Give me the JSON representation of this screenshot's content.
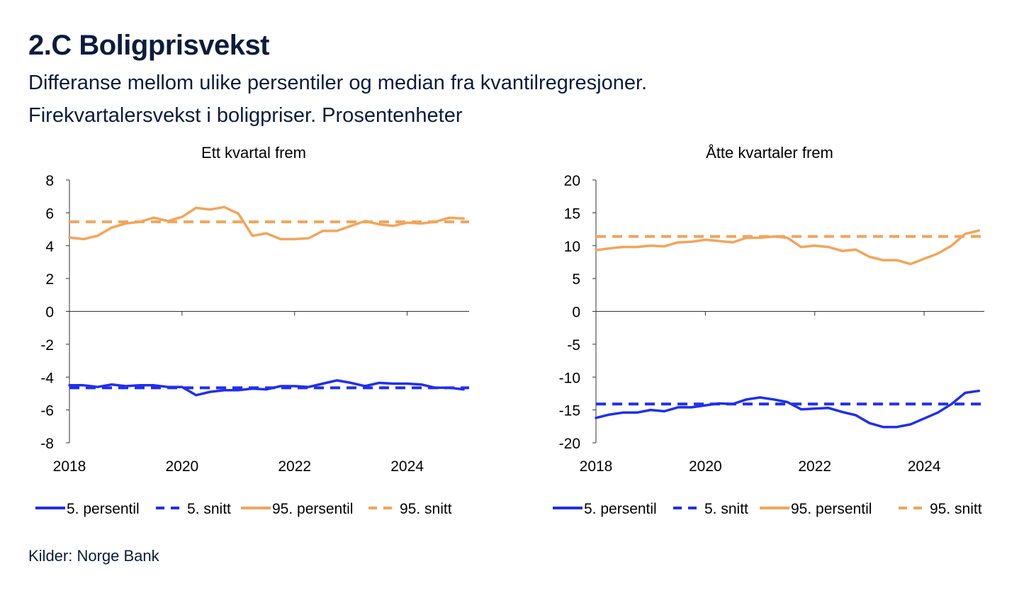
{
  "title": "2.C Boligprisvekst",
  "subtitle_line1": "Differanse mellom ulike persentiler og median fra kvantilregresjoner.",
  "subtitle_line2": "Firekvartalersvekst i boligpriser. Prosentenheter",
  "source": "Kilder: Norge Bank",
  "colors": {
    "blue": "#1f2ff0",
    "orange": "#f2a55a"
  },
  "chart_data": [
    {
      "type": "line",
      "title": "Ett kvartal frem",
      "xlabel": "",
      "ylabel": "",
      "xlim": [
        2018,
        2025.1
      ],
      "ylim": [
        -8,
        8
      ],
      "yticks": [
        "8",
        "6",
        "4",
        "2",
        "0",
        "-2",
        "-4",
        "-6",
        "-8"
      ],
      "ytick_values": [
        8,
        6,
        4,
        2,
        0,
        -2,
        -4,
        -6,
        -8
      ],
      "xticks": [
        "2018",
        "2020",
        "2022",
        "2024"
      ],
      "xtick_values": [
        2018,
        2020,
        2022,
        2024
      ],
      "legend": [
        "5. persentil",
        "5. snitt",
        "95. persentil",
        "95. snitt"
      ],
      "x": [
        2018.0,
        2018.25,
        2018.5,
        2018.75,
        2019.0,
        2019.25,
        2019.5,
        2019.75,
        2020.0,
        2020.25,
        2020.5,
        2020.75,
        2021.0,
        2021.25,
        2021.5,
        2021.75,
        2022.0,
        2022.25,
        2022.5,
        2022.75,
        2023.0,
        2023.25,
        2023.5,
        2023.75,
        2024.0,
        2024.25,
        2024.5,
        2024.75,
        2025.0
      ],
      "series": [
        {
          "name": "5. persentil",
          "style": "solid",
          "color": "#1f2ff0",
          "values": [
            -4.5,
            -4.5,
            -4.6,
            -4.45,
            -4.55,
            -4.5,
            -4.5,
            -4.6,
            -4.6,
            -5.1,
            -4.9,
            -4.8,
            -4.8,
            -4.7,
            -4.75,
            -4.55,
            -4.55,
            -4.6,
            -4.4,
            -4.2,
            -4.35,
            -4.55,
            -4.35,
            -4.4,
            -4.4,
            -4.45,
            -4.65,
            -4.65,
            -4.75
          ]
        },
        {
          "name": "5. snitt",
          "style": "dashed",
          "color": "#1f2ff0",
          "value": -4.65
        },
        {
          "name": "95. persentil",
          "style": "solid",
          "color": "#f2a55a",
          "values": [
            4.5,
            4.4,
            4.6,
            5.1,
            5.35,
            5.45,
            5.7,
            5.5,
            5.75,
            6.3,
            6.2,
            6.35,
            5.95,
            4.6,
            4.75,
            4.4,
            4.4,
            4.45,
            4.9,
            4.9,
            5.2,
            5.5,
            5.3,
            5.2,
            5.4,
            5.35,
            5.45,
            5.7,
            5.65
          ]
        },
        {
          "name": "95. snitt",
          "style": "dashed",
          "color": "#f2a55a",
          "value": 5.45
        }
      ]
    },
    {
      "type": "line",
      "title": "Åtte kvartaler frem",
      "xlabel": "",
      "ylabel": "",
      "xlim": [
        2018,
        2025.1
      ],
      "ylim": [
        -20,
        20
      ],
      "yticks": [
        "20",
        "15",
        "10",
        "5",
        "0",
        "-5",
        "-10",
        "-15",
        "-20"
      ],
      "ytick_values": [
        20,
        15,
        10,
        5,
        0,
        -5,
        -10,
        -15,
        -20
      ],
      "xticks": [
        "2018",
        "2020",
        "2022",
        "2024"
      ],
      "xtick_values": [
        2018,
        2020,
        2022,
        2024
      ],
      "legend": [
        "5. persentil",
        "5. snitt",
        "95. persentil",
        "95. snitt"
      ],
      "x": [
        2018.0,
        2018.25,
        2018.5,
        2018.75,
        2019.0,
        2019.25,
        2019.5,
        2019.75,
        2020.0,
        2020.25,
        2020.5,
        2020.75,
        2021.0,
        2021.25,
        2021.5,
        2021.75,
        2022.0,
        2022.25,
        2022.5,
        2022.75,
        2023.0,
        2023.25,
        2023.5,
        2023.75,
        2024.0,
        2024.25,
        2024.5,
        2024.75,
        2025.0
      ],
      "series": [
        {
          "name": "5. persentil",
          "style": "solid",
          "color": "#1f2ff0",
          "values": [
            -16.2,
            -15.7,
            -15.4,
            -15.4,
            -15.0,
            -15.2,
            -14.6,
            -14.6,
            -14.3,
            -14.0,
            -14.1,
            -13.4,
            -13.1,
            -13.4,
            -13.8,
            -14.9,
            -14.8,
            -14.7,
            -15.3,
            -15.8,
            -17.0,
            -17.6,
            -17.6,
            -17.2,
            -16.3,
            -15.4,
            -14.1,
            -12.4,
            -12.1
          ]
        },
        {
          "name": "5. snitt",
          "style": "dashed",
          "color": "#1f2ff0",
          "value": -14.1
        },
        {
          "name": "95. persentil",
          "style": "solid",
          "color": "#f2a55a",
          "values": [
            9.3,
            9.6,
            9.8,
            9.8,
            10.0,
            9.9,
            10.5,
            10.6,
            10.9,
            10.7,
            10.5,
            11.2,
            11.2,
            11.4,
            11.2,
            9.8,
            10.0,
            9.8,
            9.2,
            9.4,
            8.3,
            7.8,
            7.8,
            7.2,
            8.0,
            8.8,
            10.0,
            11.8,
            12.3
          ]
        },
        {
          "name": "95. snitt",
          "style": "dashed",
          "color": "#f2a55a",
          "value": 11.4
        }
      ]
    }
  ]
}
